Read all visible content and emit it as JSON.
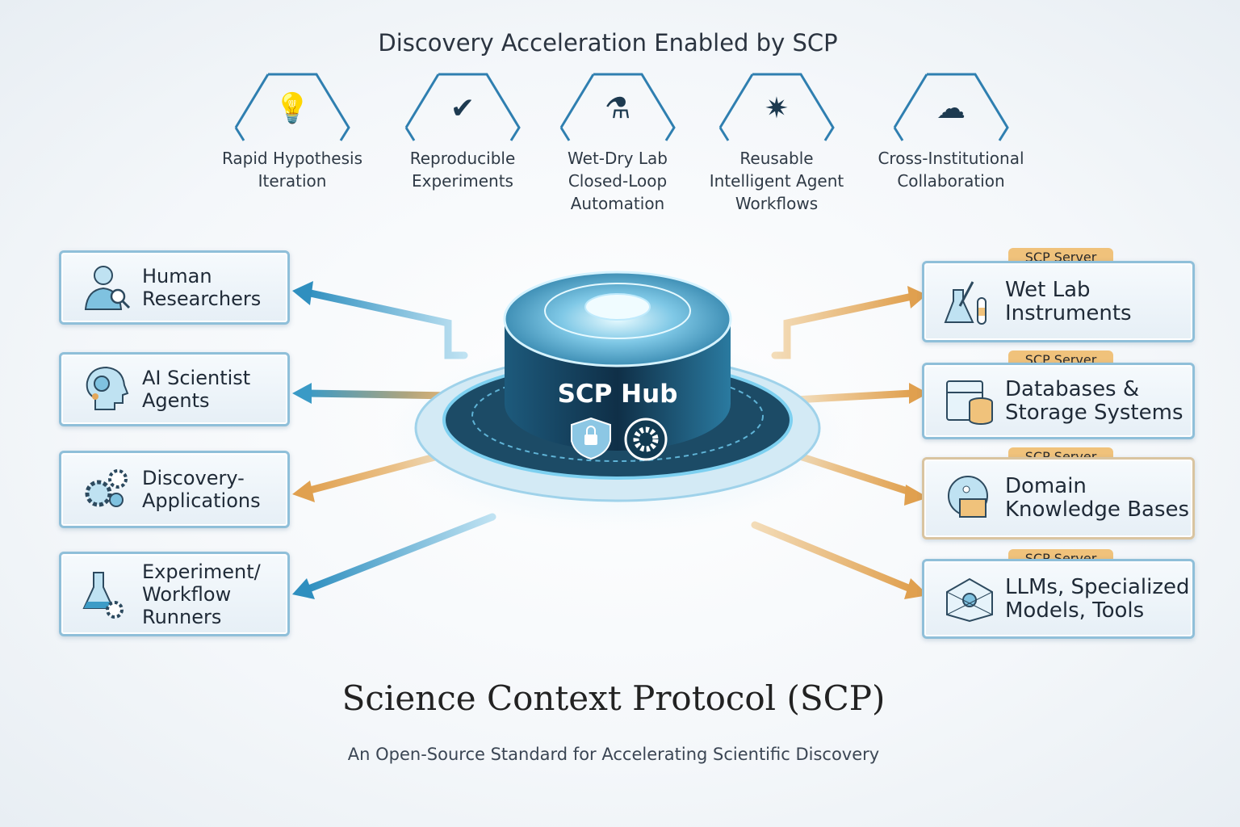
{
  "header": {
    "title": "Discovery Acceleration Enabled by SCP"
  },
  "features": [
    {
      "label1": "Rapid Hypothesis",
      "label2": "Iteration",
      "label3": "",
      "icon": "lightbulb-icon"
    },
    {
      "label1": "Reproducible",
      "label2": "Experiments",
      "label3": "",
      "icon": "checkmark-cycle-icon"
    },
    {
      "label1": "Wet-Dry Lab",
      "label2": "Closed-Loop",
      "label3": "Automation",
      "icon": "flasks-loop-icon"
    },
    {
      "label1": "Reusable",
      "label2": "Intelligent Agent",
      "label3": "Workflows",
      "icon": "network-brain-icon"
    },
    {
      "label1": "Cross-Institutional",
      "label2": "Collaboration",
      "label3": "",
      "icon": "cloud-network-icon"
    }
  ],
  "clients": [
    {
      "line1": "Human",
      "line2": "Researchers",
      "line3": "",
      "icon": "researcher-icon"
    },
    {
      "line1": "AI Scientist",
      "line2": "Agents",
      "line3": "",
      "icon": "ai-head-icon"
    },
    {
      "line1": "Discovery-",
      "line2": "Applications",
      "line3": "",
      "icon": "gears-icon"
    },
    {
      "line1": "Experiment/",
      "line2": "Workflow",
      "line3": "Runners",
      "icon": "flask-gear-icon"
    }
  ],
  "servers": [
    {
      "badge": "SCP Server",
      "line1": "Wet Lab",
      "line2": "Instruments",
      "icon": "lab-flask-icon"
    },
    {
      "badge": "SCP Server",
      "line1": "Databases &",
      "line2": "Storage Systems",
      "icon": "database-icon"
    },
    {
      "badge": "SCP Server",
      "line1": "Domain",
      "line2": "Knowledge Bases",
      "icon": "knowledge-book-icon"
    },
    {
      "badge": "SCP Server",
      "line1": "LLMs, Specialized",
      "line2": "Models, Tools",
      "icon": "model-network-icon"
    }
  ],
  "hub": {
    "label": "SCP Hub",
    "icons": [
      "shield-lock-icon",
      "gear-icon"
    ]
  },
  "footer": {
    "title": "Science Context Protocol (SCP)",
    "subtitle": "An Open-Source Standard for Accelerating Scientific Discovery"
  },
  "colors": {
    "blue": "#3d9cc7",
    "orange": "#e3a75a",
    "badge": "#f0c27b",
    "hub_dark": "#123a52",
    "card_border": "#8fbfd9"
  }
}
